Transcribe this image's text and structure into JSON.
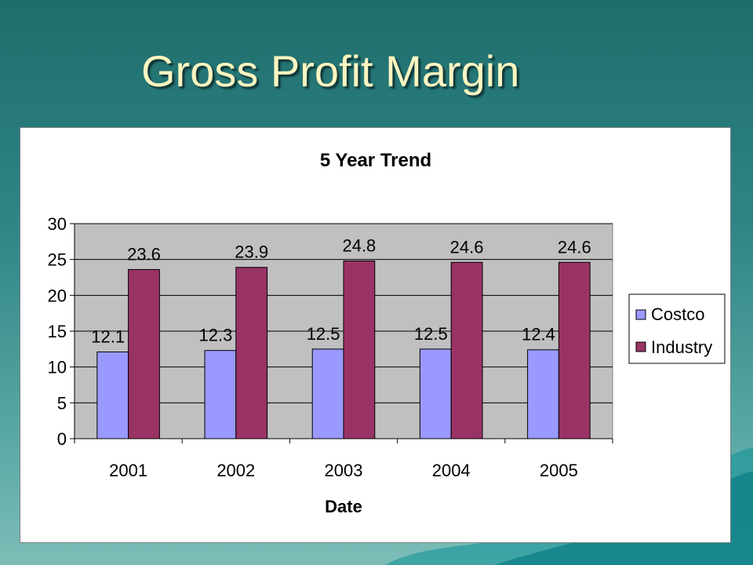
{
  "slide": {
    "title": "Gross Profit Margin"
  },
  "colors": {
    "costco": "#9999ff",
    "industry": "#993366",
    "plot_area": "#c0c0c0",
    "title_text": "#fbf5c1"
  },
  "chart_data": {
    "type": "bar",
    "title": "5 Year Trend",
    "xlabel": "Date",
    "ylabel": "",
    "categories": [
      "2001",
      "2002",
      "2003",
      "2004",
      "2005"
    ],
    "series": [
      {
        "name": "Costco",
        "values": [
          12.1,
          12.3,
          12.5,
          12.5,
          12.4
        ]
      },
      {
        "name": "Industry",
        "values": [
          23.6,
          23.9,
          24.8,
          24.6,
          24.6
        ]
      }
    ],
    "ylim": [
      0,
      30
    ],
    "yticks": [
      0,
      5,
      10,
      15,
      20,
      25,
      30
    ],
    "grid": true,
    "legend_position": "right"
  }
}
